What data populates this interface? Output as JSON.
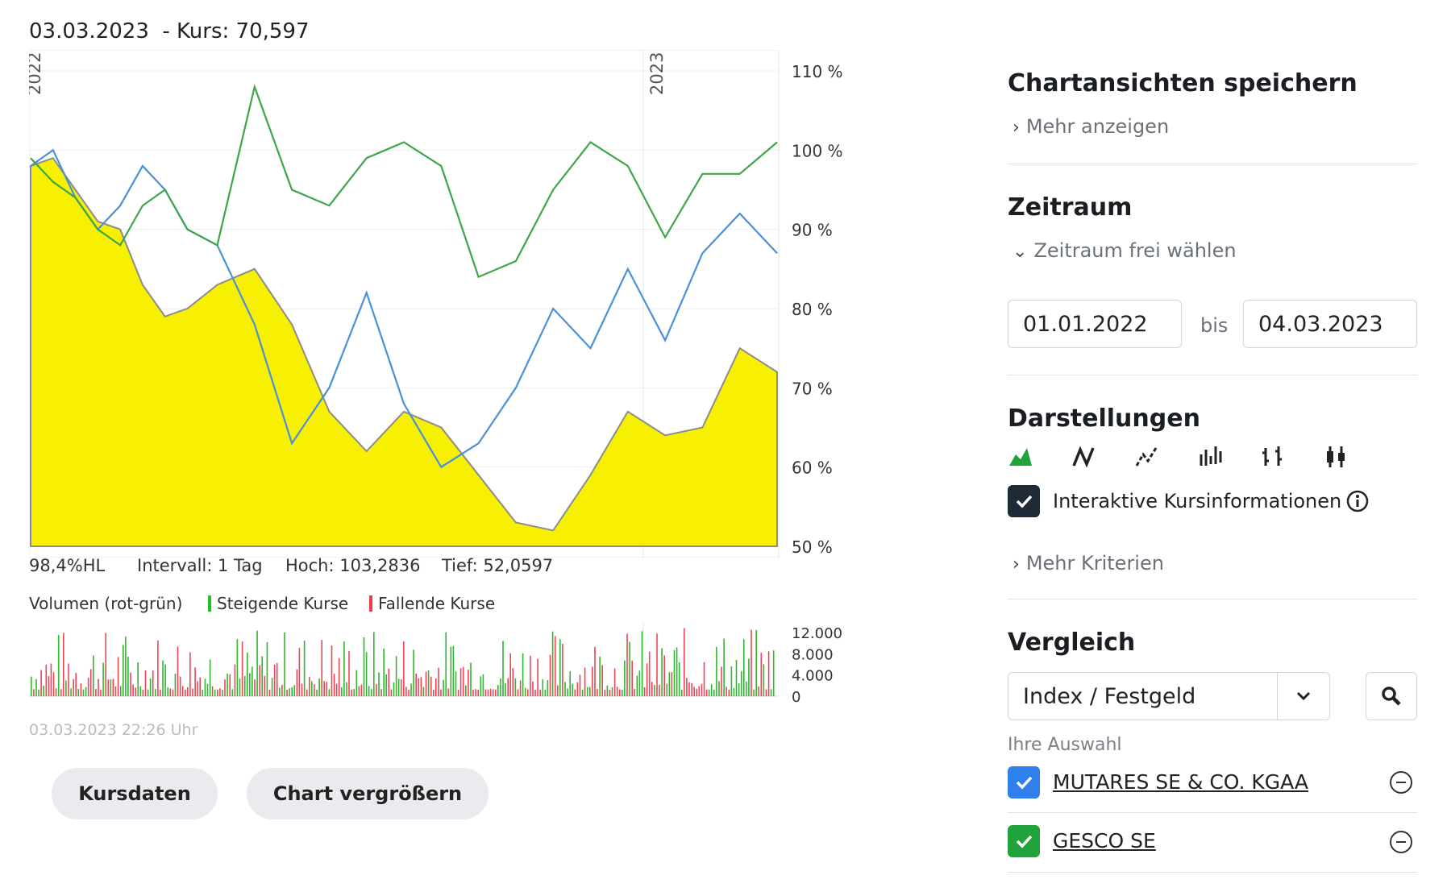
{
  "chart_header": {
    "date": "03.03.2023",
    "price_label": "- Kurs: 70,597"
  },
  "chart_data": {
    "type": "line",
    "y_tick_labels": [
      "110 %",
      "100 %",
      "90 %",
      "80 %",
      "70 %",
      "60 %",
      "50 %"
    ],
    "year_labels": [
      "2022",
      "2023"
    ],
    "ylim": [
      50,
      110
    ],
    "series": [
      {
        "name": "",
        "color": "#f7f000",
        "fill": true,
        "x": [
          0,
          3,
          6,
          9,
          12,
          15,
          18,
          21,
          25,
          30,
          35,
          40,
          45,
          50,
          55,
          60,
          65,
          70,
          75,
          80,
          85,
          90,
          95,
          100
        ],
        "values": [
          98,
          99,
          95,
          91,
          90,
          83,
          79,
          80,
          83,
          85,
          78,
          67,
          62,
          67,
          65,
          59,
          53,
          52,
          59,
          67,
          64,
          65,
          75,
          72
        ]
      },
      {
        "name": "",
        "color": "#4a90d9",
        "x": [
          0,
          3,
          6,
          9,
          12,
          15,
          18,
          21,
          25,
          30,
          35,
          40,
          45,
          50,
          55,
          60,
          65,
          70,
          75,
          80,
          85,
          90,
          95,
          100
        ],
        "values": [
          98,
          100,
          94,
          90,
          93,
          98,
          95,
          90,
          88,
          78,
          63,
          70,
          82,
          68,
          60,
          63,
          70,
          80,
          75,
          85,
          76,
          87,
          92,
          87
        ]
      },
      {
        "name": "",
        "color": "#3ea54a",
        "x": [
          0,
          3,
          6,
          9,
          12,
          15,
          18,
          21,
          25,
          30,
          35,
          40,
          45,
          50,
          55,
          60,
          65,
          70,
          75,
          80,
          85,
          90,
          95,
          100
        ],
        "values": [
          99,
          96,
          94,
          90,
          88,
          93,
          95,
          90,
          88,
          108,
          95,
          93,
          99,
          101,
          98,
          84,
          86,
          95,
          101,
          98,
          89,
          97,
          97,
          101
        ]
      }
    ],
    "volume": {
      "type": "bar",
      "y_tick_labels": [
        "12.000",
        "8.000",
        "4.000",
        "0"
      ],
      "ylim": [
        0,
        14000
      ]
    }
  },
  "stats": {
    "hl": "98,4%HL",
    "interval": "Intervall: 1 Tag",
    "high": "Hoch: 103,2836",
    "low": "Tief: 52,0597"
  },
  "volume_legend": {
    "title": "Volumen (rot-grün)",
    "rising": "Steigende Kurse",
    "falling": "Fallende Kurse"
  },
  "timestamp": "03.03.2023 22:26 Uhr",
  "buttons": {
    "kursdaten": "Kursdaten",
    "enlarge": "Chart vergrößern"
  },
  "sidebar": {
    "save_title": "Chartansichten speichern",
    "show_more": "Mehr anzeigen",
    "period_title": "Zeitraum",
    "period_toggle": "Zeitraum frei wählen",
    "date_from": "01.01.2022",
    "date_to_sep": "bis",
    "date_to": "04.03.2023",
    "display_title": "Darstellungen",
    "interactive_label": "Interaktive Kursinformationen",
    "more_criteria": "Mehr Kriterien",
    "compare_title": "Vergleich",
    "compare_select": "Index / Festgeld",
    "selection_label": "Ihre Auswahl",
    "comparisons": [
      {
        "name": "MUTARES SE & CO. KGAA",
        "color": "#2f80ed"
      },
      {
        "name": "GESCO SE",
        "color": "#1fa33a"
      }
    ]
  }
}
